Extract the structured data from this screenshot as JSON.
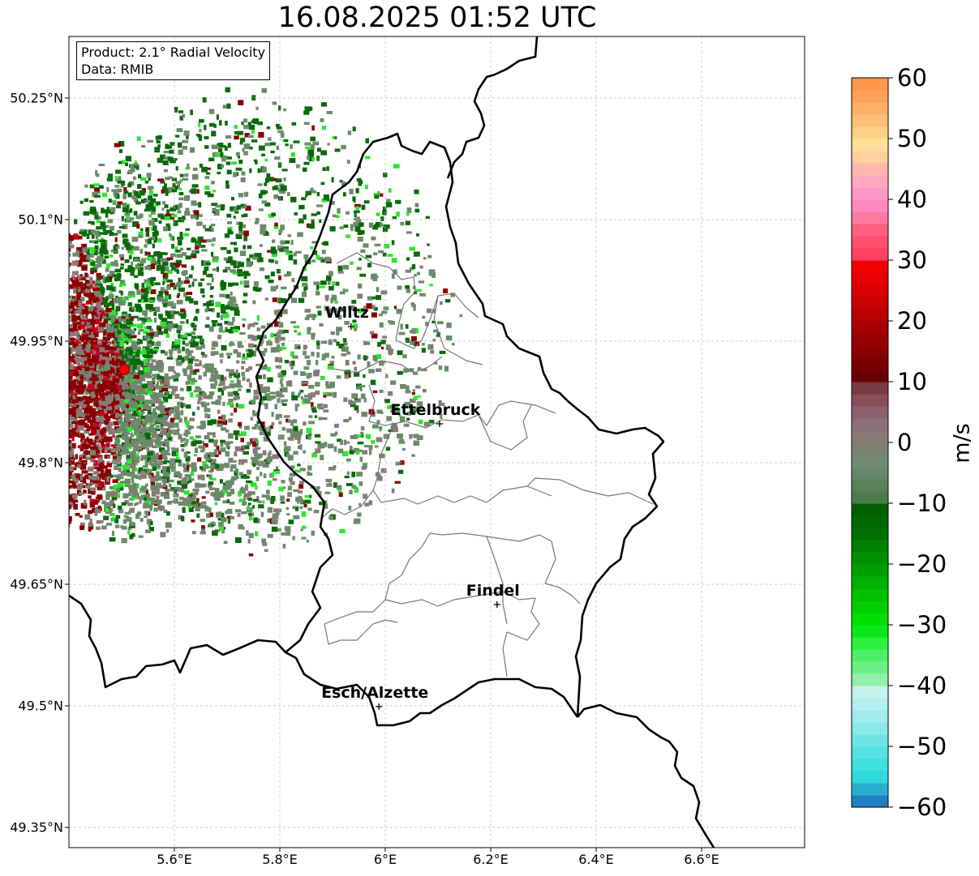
{
  "title": "16.08.2025 01:52 UTC",
  "info_box": {
    "product": "Product: 2.1° Radial Velocity",
    "data_source": "Data: RMIB"
  },
  "axes": {
    "lat_ticks": [
      {
        "value": 50.25,
        "label": "50.25°N"
      },
      {
        "value": 50.1,
        "label": "50.1°N"
      },
      {
        "value": 49.95,
        "label": "49.95°N"
      },
      {
        "value": 49.8,
        "label": "49.8°N"
      },
      {
        "value": 49.65,
        "label": "49.65°N"
      },
      {
        "value": 49.5,
        "label": "49.5°N"
      },
      {
        "value": 49.35,
        "label": "49.35°N"
      }
    ],
    "lon_ticks": [
      {
        "value": 5.6,
        "label": "5.6°E"
      },
      {
        "value": 5.8,
        "label": "5.8°E"
      },
      {
        "value": 6.0,
        "label": "6°E"
      },
      {
        "value": 6.2,
        "label": "6.2°E"
      },
      {
        "value": 6.4,
        "label": "6.4°E"
      },
      {
        "value": 6.6,
        "label": "6.6°E"
      }
    ],
    "gridlines": true
  },
  "cities": [
    {
      "name": "Wiltz",
      "lon": 5.935,
      "lat": 49.968
    },
    {
      "name": "Ettelbruck",
      "lon": 6.103,
      "lat": 49.848
    },
    {
      "name": "Findel",
      "lon": 6.212,
      "lat": 49.625
    },
    {
      "name": "Esch/Alzette",
      "lon": 5.988,
      "lat": 49.499
    }
  ],
  "radar_site": {
    "lon": 5.505,
    "lat": 49.915
  },
  "colorbar": {
    "unit": "m/s",
    "min": -60,
    "max": 60,
    "ticks": [
      {
        "value": 60,
        "label": "60"
      },
      {
        "value": 50,
        "label": "50"
      },
      {
        "value": 40,
        "label": "40"
      },
      {
        "value": 30,
        "label": "30"
      },
      {
        "value": 20,
        "label": "20"
      },
      {
        "value": 10,
        "label": "10"
      },
      {
        "value": 0,
        "label": "0"
      },
      {
        "value": -10,
        "label": "−10"
      },
      {
        "value": -20,
        "label": "−20"
      },
      {
        "value": -30,
        "label": "−30"
      },
      {
        "value": -40,
        "label": "−40"
      },
      {
        "value": -50,
        "label": "−50"
      },
      {
        "value": -60,
        "label": "−60"
      }
    ],
    "colors_low_to_high": [
      "#1f7fc0",
      "#28afd0",
      "#2ed8dc",
      "#3ee0e0",
      "#56e3e3",
      "#6fe6e6",
      "#88e9e9",
      "#a0ecec",
      "#b6efef",
      "#c8f2ee",
      "#90f0a8",
      "#6ef088",
      "#4cf068",
      "#2af040",
      "#0ae81a",
      "#00e000",
      "#00d000",
      "#00c000",
      "#00b000",
      "#00a000",
      "#009000",
      "#008000",
      "#007000",
      "#006800",
      "#006000",
      "#4e7a50",
      "#5a8058",
      "#66886a",
      "#728a72",
      "#7a8070",
      "#887878",
      "#8a7078",
      "#8a6070",
      "#8a5058",
      "#7a3c44",
      "#6a0000",
      "#780000",
      "#880000",
      "#980000",
      "#a80000",
      "#b80000",
      "#c80000",
      "#d80000",
      "#e80000",
      "#f40000",
      "#ff4060",
      "#ff5070",
      "#ff6080",
      "#ff78a0",
      "#ff88c0",
      "#ff98c8",
      "#ffa8c0",
      "#ffb8b0",
      "#ffd0a0",
      "#ffe098",
      "#ffd088",
      "#ffc078",
      "#ffb068",
      "#ffa058",
      "#ff9848"
    ]
  },
  "velocity_palette": {
    "outbound_gray": "#6b8a6b",
    "inbound_green": "#0a6a0a",
    "bright_green": "#2ae82a",
    "outbound_red": "#8a0000",
    "mauve": "#8a7878",
    "site_marker": "#ff0000"
  }
}
